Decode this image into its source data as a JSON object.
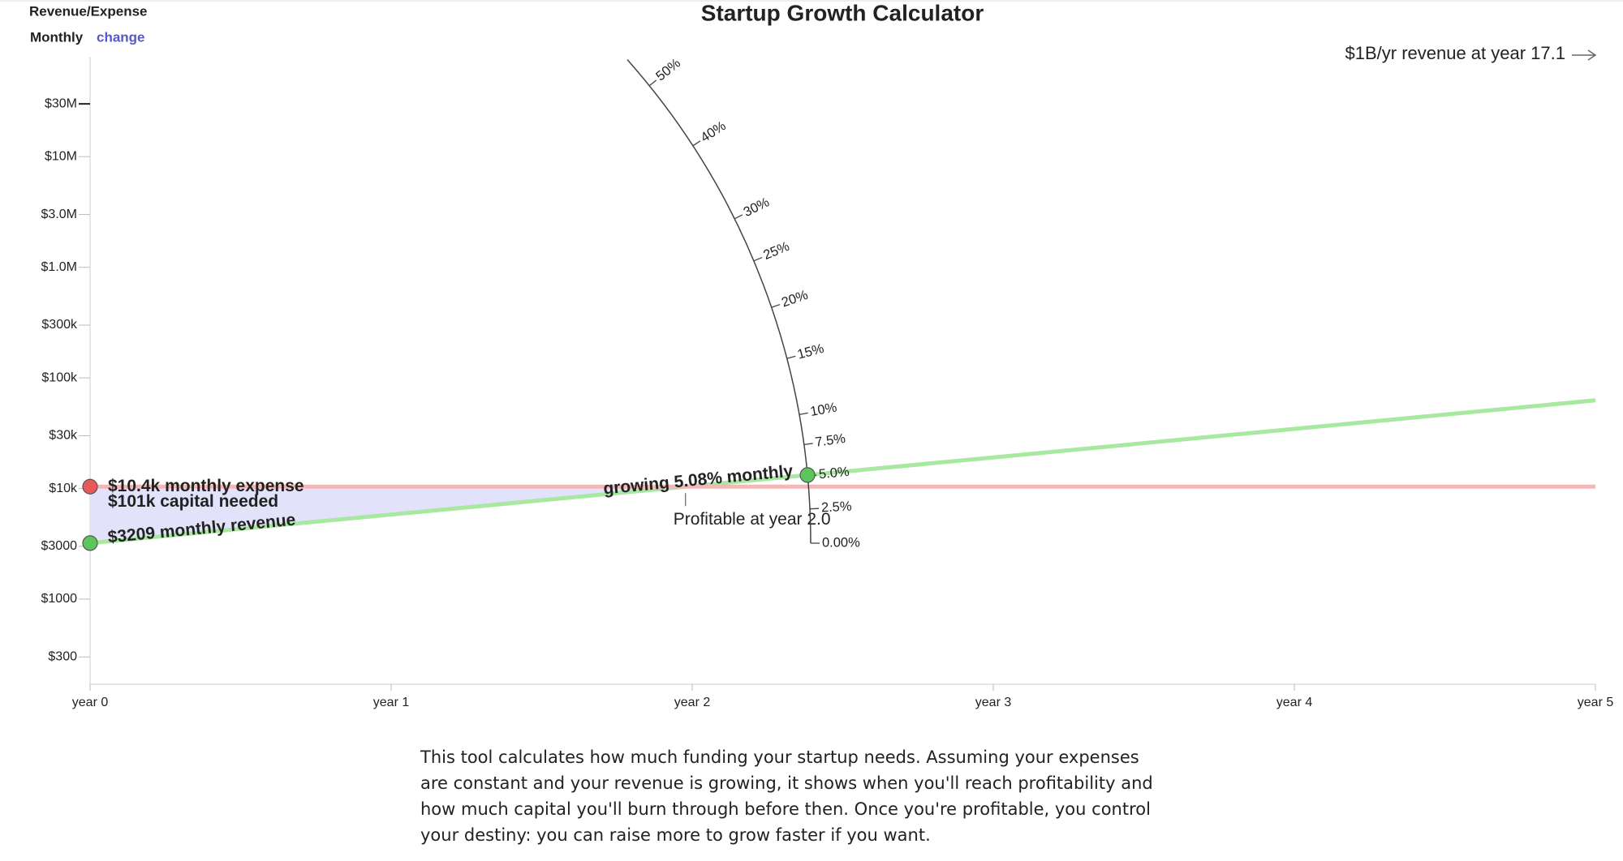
{
  "chart_data": {
    "type": "line",
    "title": "Startup Growth Calculator",
    "ylabel": "Revenue/Expense",
    "period": "Monthly",
    "period_change": "change",
    "log_y": true,
    "xlim": [
      0,
      5
    ],
    "xticks": [
      {
        "value": 0,
        "label": "year 0"
      },
      {
        "value": 1,
        "label": "year 1"
      },
      {
        "value": 2,
        "label": "year 2"
      },
      {
        "value": 3,
        "label": "year 3"
      },
      {
        "value": 4,
        "label": "year 4"
      },
      {
        "value": 5,
        "label": "year 5"
      }
    ],
    "ylim": [
      170,
      80000000
    ],
    "yticks": [
      {
        "value": 30000000,
        "label": "$30M"
      },
      {
        "value": 10000000,
        "label": "$10M"
      },
      {
        "value": 3000000,
        "label": "$3.0M"
      },
      {
        "value": 1000000,
        "label": "$1.0M"
      },
      {
        "value": 300000,
        "label": "$300k"
      },
      {
        "value": 100000,
        "label": "$100k"
      },
      {
        "value": 30000,
        "label": "$30k"
      },
      {
        "value": 10000,
        "label": "$10k"
      },
      {
        "value": 3000,
        "label": "$3000"
      },
      {
        "value": 1000,
        "label": "$1000"
      },
      {
        "value": 300,
        "label": "$300"
      }
    ],
    "x": [
      0,
      1,
      2,
      3,
      4,
      5
    ],
    "series": [
      {
        "color": "#a8e8a0",
        "values": [
          3209,
          5815,
          10538,
          19096,
          34600,
          62700
        ]
      },
      {
        "color": "#f2b8b8",
        "values": [
          10400,
          10400,
          10400,
          10400,
          10400,
          10400
        ]
      }
    ],
    "fill_color": "#e2e2fb",
    "annotations": {
      "expense": "$10.4k monthly expense",
      "capital": "$101k capital needed",
      "revenue": "$3209 monthly revenue",
      "growth": "growing 5.08% monthly",
      "profitable": "Profitable at year 2.0",
      "billion": "$1B/yr revenue at year 17.1"
    },
    "growth_rate": 5.08,
    "rate_ticks": [
      {
        "value": 50,
        "label": "50%"
      },
      {
        "value": 40,
        "label": "40%"
      },
      {
        "value": 30,
        "label": "30%"
      },
      {
        "value": 25,
        "label": "25%"
      },
      {
        "value": 20,
        "label": "20%"
      },
      {
        "value": 15,
        "label": "15%"
      },
      {
        "value": 10,
        "label": "10%"
      },
      {
        "value": 7.5,
        "label": "7.5%"
      },
      {
        "value": 5,
        "label": "5.0%"
      },
      {
        "value": 2.5,
        "label": "2.5%"
      },
      {
        "value": 0,
        "label": "0.00%"
      }
    ]
  },
  "description": "This tool calculates how much funding your startup needs. Assuming your expenses are constant and your revenue is growing, it shows when you'll reach profitability and how much capital you'll burn through before then. Once you're profitable, you control your destiny: you can raise more to grow faster if you want."
}
